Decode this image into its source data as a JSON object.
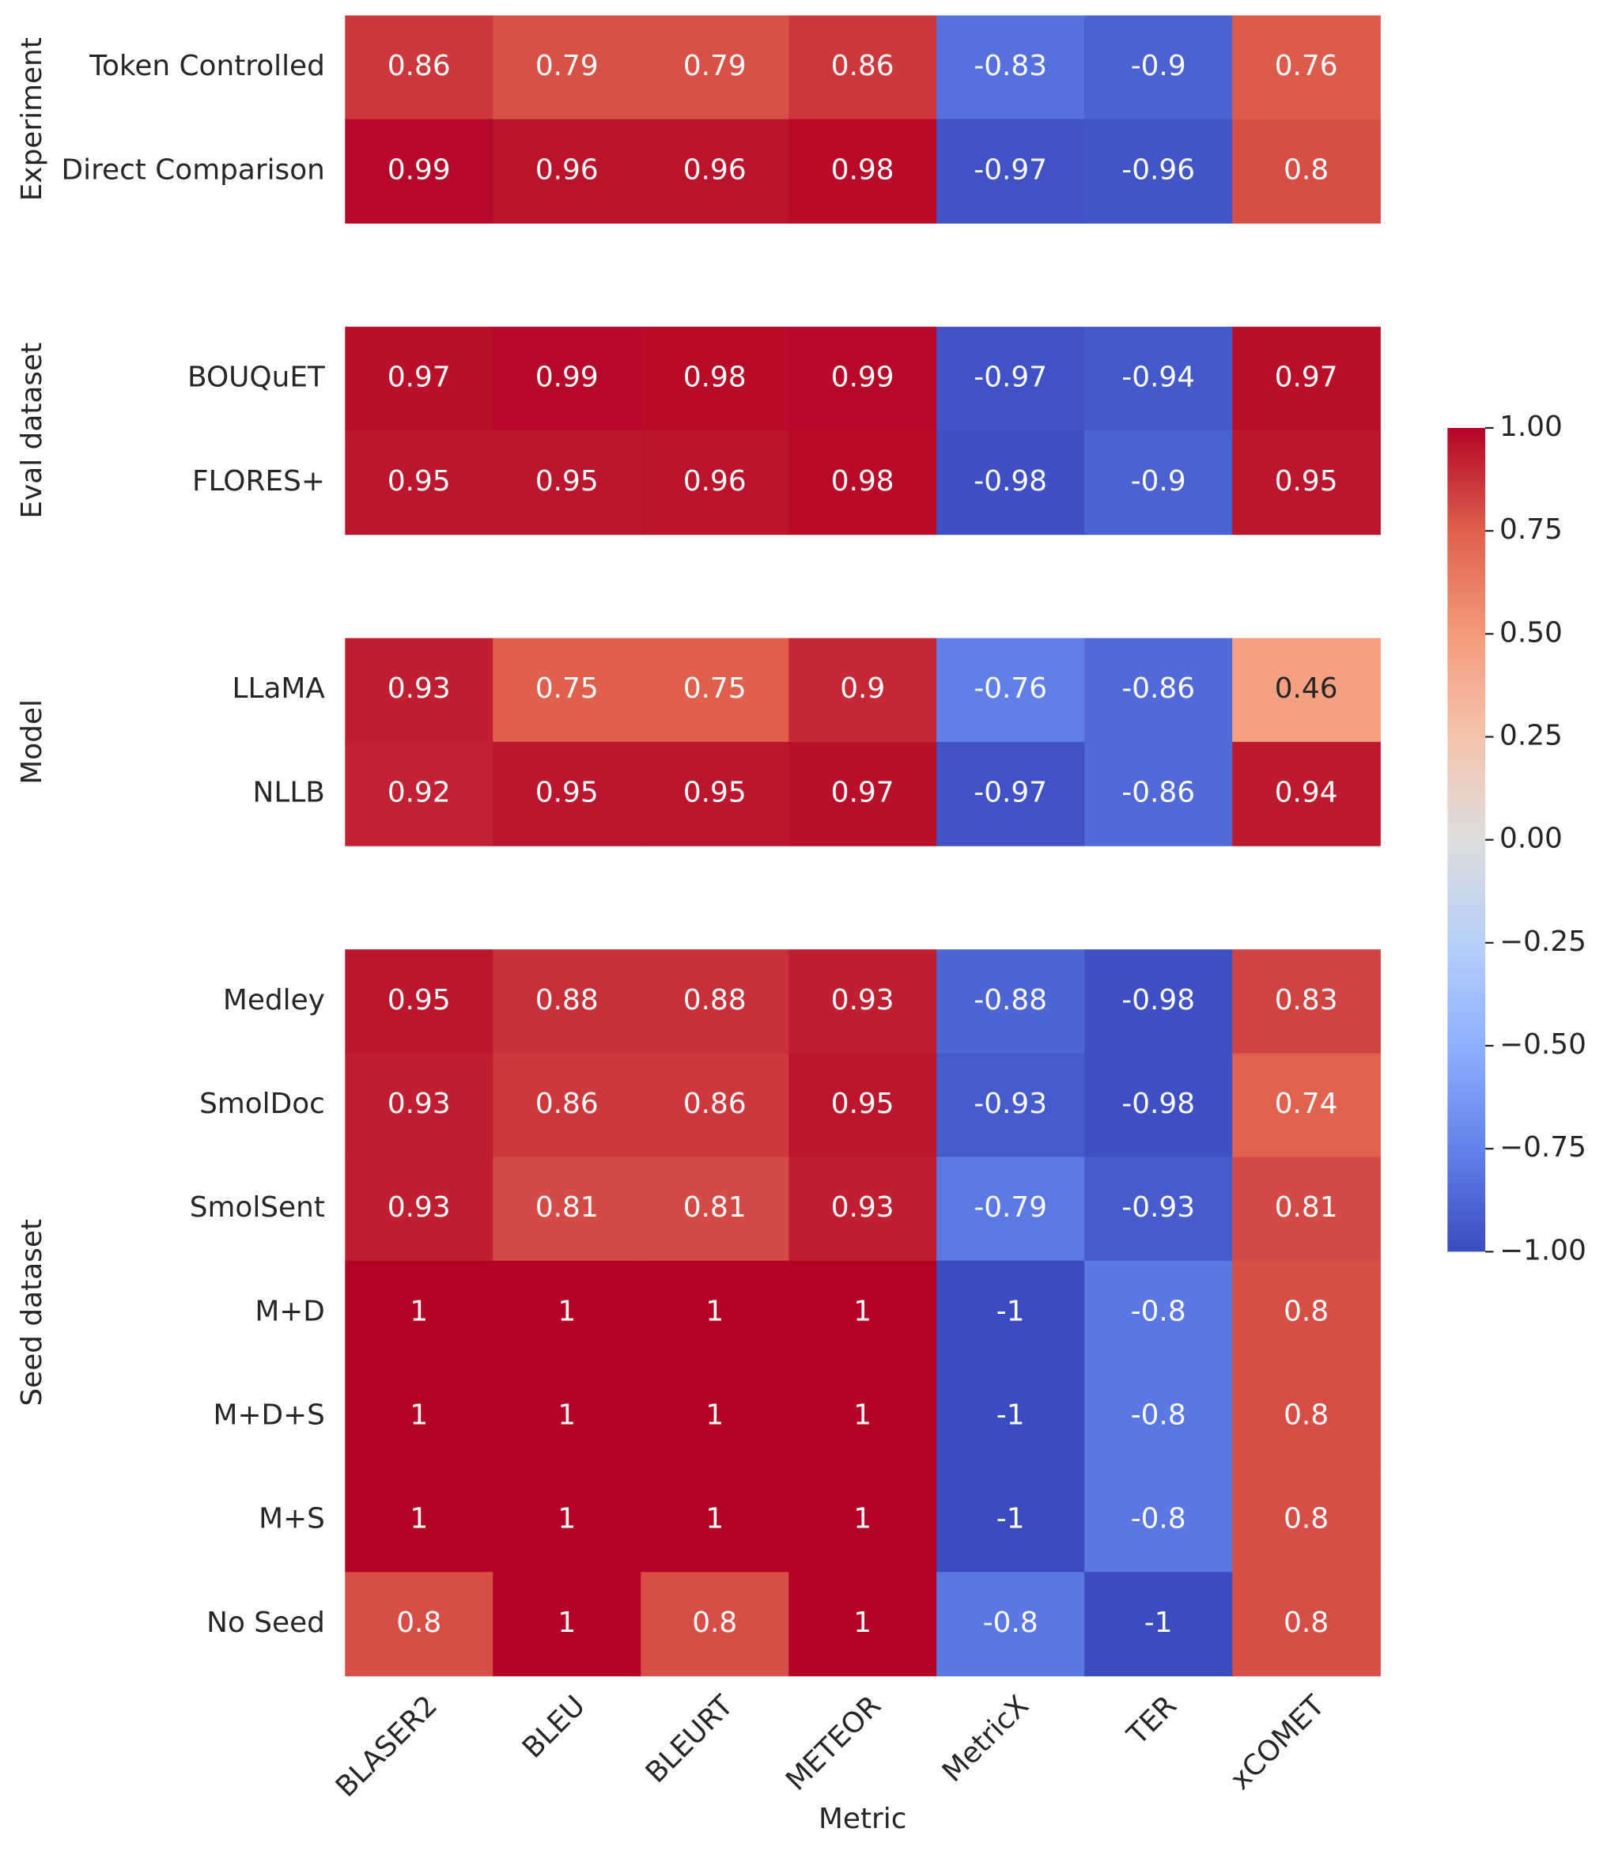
{
  "chart_data": {
    "type": "heatmap",
    "colormap": "coolwarm",
    "xlabel": "Metric",
    "columns": [
      "BLASER2",
      "BLEU",
      "BLEURT",
      "METEOR",
      "MetricX",
      "TER",
      "xCOMET"
    ],
    "groups": [
      {
        "name": "Experiment",
        "rows": [
          "Token Controlled",
          "Direct Comparison"
        ],
        "values": [
          [
            0.86,
            0.79,
            0.79,
            0.86,
            -0.83,
            -0.9,
            0.76
          ],
          [
            0.99,
            0.96,
            0.96,
            0.98,
            -0.97,
            -0.96,
            0.8
          ]
        ]
      },
      {
        "name": "Eval dataset",
        "rows": [
          "BOUQuET",
          "FLORES+"
        ],
        "values": [
          [
            0.97,
            0.99,
            0.98,
            0.99,
            -0.97,
            -0.94,
            0.97
          ],
          [
            0.95,
            0.95,
            0.96,
            0.98,
            -0.98,
            -0.9,
            0.95
          ]
        ]
      },
      {
        "name": "Model",
        "rows": [
          "LLaMA",
          "NLLB"
        ],
        "values": [
          [
            0.93,
            0.75,
            0.75,
            0.9,
            -0.76,
            -0.86,
            0.46
          ],
          [
            0.92,
            0.95,
            0.95,
            0.97,
            -0.97,
            -0.86,
            0.94
          ]
        ]
      },
      {
        "name": "Seed dataset",
        "rows": [
          "Medley",
          "SmolDoc",
          "SmolSent",
          "M+D",
          "M+D+S",
          "M+S",
          "No Seed"
        ],
        "values": [
          [
            0.95,
            0.88,
            0.88,
            0.93,
            -0.88,
            -0.98,
            0.83
          ],
          [
            0.93,
            0.86,
            0.86,
            0.95,
            -0.93,
            -0.98,
            0.74
          ],
          [
            0.93,
            0.81,
            0.81,
            0.93,
            -0.79,
            -0.93,
            0.81
          ],
          [
            1,
            1,
            1,
            1,
            -1,
            -0.8,
            0.8
          ],
          [
            1,
            1,
            1,
            1,
            -1,
            -0.8,
            0.8
          ],
          [
            1,
            1,
            1,
            1,
            -1,
            -0.8,
            0.8
          ],
          [
            0.8,
            1,
            0.8,
            1,
            -0.8,
            -1,
            0.8
          ]
        ]
      }
    ],
    "zlim": [
      -1,
      1
    ],
    "zticks": [
      {
        "value": 1,
        "label": "1.00"
      },
      {
        "value": 0.75,
        "label": "0.75"
      },
      {
        "value": 0.5,
        "label": "0.50"
      },
      {
        "value": 0.25,
        "label": "0.25"
      },
      {
        "value": 0,
        "label": "0.00"
      },
      {
        "value": -0.25,
        "label": "−0.25"
      },
      {
        "value": -0.5,
        "label": "−0.50"
      },
      {
        "value": -0.75,
        "label": "−0.75"
      },
      {
        "value": -1,
        "label": "−1.00"
      }
    ]
  }
}
